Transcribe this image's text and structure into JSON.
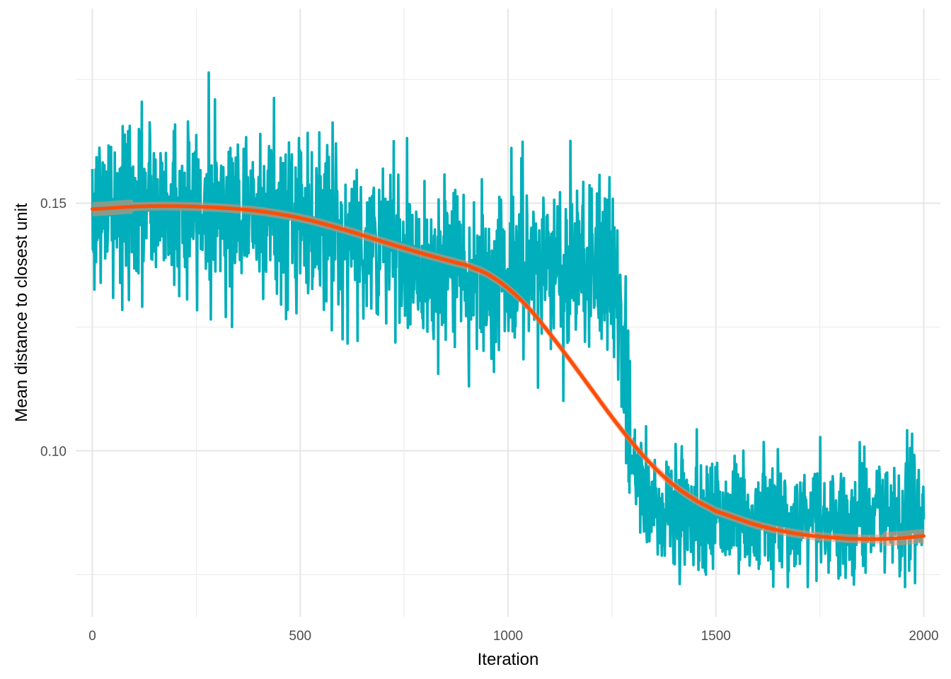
{
  "chart_data": {
    "type": "line",
    "title": "",
    "xlabel": "Iteration",
    "ylabel": "Mean distance to closest unit",
    "xlim": [
      -40,
      2040
    ],
    "ylim": [
      0.0665,
      0.1893
    ],
    "x_ticks": [
      0,
      500,
      1000,
      1500,
      2000
    ],
    "x_tick_labels": [
      "0",
      "500",
      "1000",
      "1500",
      "2000"
    ],
    "x_minor_ticks": [
      250,
      750,
      1250,
      1750
    ],
    "y_ticks": [
      0.1,
      0.15
    ],
    "y_tick_labels": [
      "0.10",
      "0.15"
    ],
    "y_minor_ticks": [
      0.075,
      0.125,
      0.175
    ],
    "grid": true,
    "legend": "none",
    "n_points": 2001,
    "x_range": [
      0,
      2000
    ],
    "raw_series": {
      "color": "#00AFBB",
      "description_knots": {
        "x": [
          0,
          200,
          400,
          500,
          600,
          700,
          800,
          900,
          1000,
          1100,
          1200,
          1250,
          1270,
          1300,
          1350,
          1400,
          1500,
          1600,
          1700,
          1800,
          1900,
          2000
        ],
        "y": [
          0.149,
          0.149,
          0.149,
          0.147,
          0.144,
          0.141,
          0.138,
          0.136,
          0.136,
          0.138,
          0.138,
          0.137,
          0.128,
          0.095,
          0.089,
          0.088,
          0.087,
          0.0865,
          0.086,
          0.086,
          0.0865,
          0.087
        ]
      },
      "noise_sd": 0.0085,
      "max": 0.1855,
      "min": 0.0725
    },
    "smooth_series": {
      "color": "#FC4E07",
      "band_color": "#F08C6A",
      "x": [
        0,
        100,
        200,
        300,
        400,
        500,
        600,
        700,
        800,
        900,
        950,
        1000,
        1050,
        1100,
        1150,
        1200,
        1250,
        1300,
        1350,
        1400,
        1450,
        1500,
        1600,
        1700,
        1800,
        1850,
        1900,
        1950,
        2000
      ],
      "y": [
        0.1488,
        0.1493,
        0.1494,
        0.1491,
        0.1484,
        0.147,
        0.1448,
        0.1422,
        0.1397,
        0.1375,
        0.1357,
        0.1328,
        0.1288,
        0.1237,
        0.1182,
        0.1125,
        0.1068,
        0.1015,
        0.0968,
        0.093,
        0.0901,
        0.0878,
        0.085,
        0.0832,
        0.0824,
        0.0822,
        0.0822,
        0.0824,
        0.0828
      ],
      "se": 0.0009
    }
  }
}
